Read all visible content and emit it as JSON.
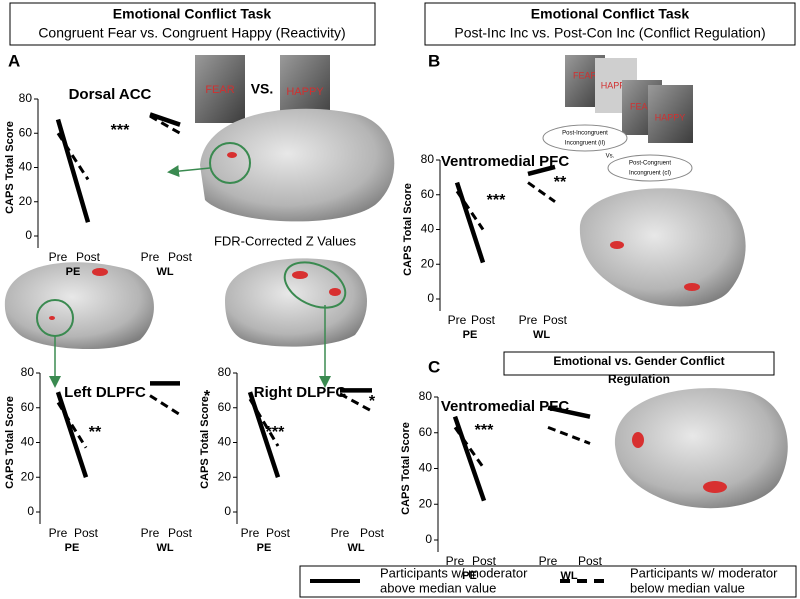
{
  "panels": {
    "A": {
      "label": "A",
      "header": [
        "Emotional Conflict Task",
        "Congruent Fear vs. Congruent Happy (Reactivity)"
      ],
      "vs": "VS.",
      "faces": [
        "FEAR",
        "HAPPY"
      ],
      "colorbar": "FDR-Corrected Z Values"
    },
    "B": {
      "label": "B",
      "header": [
        "Emotional Conflict Task",
        "Post-Inc Inc vs. Post-Con Inc (Conflict Regulation)"
      ],
      "faces": [
        "FEAR",
        "HAPPY",
        "FEAR",
        "HAPPY"
      ],
      "ovals": [
        [
          "Post-Incongruent",
          "Incongruent (iI)"
        ],
        [
          "Post-Congruent",
          "Incongruent (cI)"
        ]
      ],
      "vs": "Vs."
    },
    "C": {
      "label": "C",
      "header": [
        "Emotional vs. Gender Conflict",
        "Regulation"
      ]
    }
  },
  "legend": [
    {
      "dashed": false,
      "label": [
        "Participants w/ moderator",
        "above median value"
      ]
    },
    {
      "dashed": true,
      "label": [
        "Participants w/ moderator",
        "below median value"
      ]
    }
  ],
  "chart_data": [
    {
      "type": "line",
      "title": "Dorsal ACC",
      "ylabel": "CAPS Total Score",
      "categories": [
        "Pre",
        "Post",
        "Pre",
        "Post"
      ],
      "groups": [
        "PE",
        "WL"
      ],
      "ylim": [
        0,
        80
      ],
      "yticks": [
        0,
        20,
        40,
        60,
        80
      ],
      "series": [
        {
          "dashed": false,
          "values": [
            68,
            8,
            71,
            65
          ]
        },
        {
          "dashed": true,
          "values": [
            60,
            33,
            70,
            60
          ]
        }
      ],
      "annotations": [
        "***"
      ]
    },
    {
      "type": "line",
      "title": "Ventromedial  PFC",
      "ylabel": "CAPS Total Score",
      "categories": [
        "Pre",
        "Post",
        "Pre",
        "Post"
      ],
      "groups": [
        "PE",
        "WL"
      ],
      "ylim": [
        0,
        80
      ],
      "yticks": [
        0,
        20,
        40,
        60,
        80
      ],
      "series": [
        {
          "dashed": false,
          "values": [
            67,
            21,
            72,
            76
          ]
        },
        {
          "dashed": true,
          "values": [
            62,
            40,
            67,
            56
          ]
        }
      ],
      "annotations": [
        "***",
        "**"
      ]
    },
    {
      "type": "line",
      "title": "Left DLPFC",
      "ylabel": "CAPS Total Score",
      "categories": [
        "Pre",
        "Post",
        "Pre",
        "Post"
      ],
      "groups": [
        "PE",
        "WL"
      ],
      "ylim": [
        0,
        80
      ],
      "yticks": [
        0,
        20,
        40,
        60,
        80
      ],
      "series": [
        {
          "dashed": false,
          "values": [
            69,
            20,
            74,
            74
          ]
        },
        {
          "dashed": true,
          "values": [
            63,
            37,
            67,
            56
          ]
        }
      ],
      "annotations": [
        "**",
        "*"
      ]
    },
    {
      "type": "line",
      "title": "Right DLPFC",
      "ylabel": "CAPS Total Score",
      "categories": [
        "Pre",
        "Post",
        "Pre",
        "Post"
      ],
      "groups": [
        "PE",
        "WL"
      ],
      "ylim": [
        0,
        80
      ],
      "yticks": [
        0,
        20,
        40,
        60,
        80
      ],
      "series": [
        {
          "dashed": false,
          "values": [
            69,
            20,
            70,
            70
          ]
        },
        {
          "dashed": true,
          "values": [
            65,
            38,
            68,
            58
          ]
        }
      ],
      "annotations": [
        "***",
        "*"
      ]
    },
    {
      "type": "line",
      "title": "Ventromedial  PFC",
      "ylabel": "CAPS Total Score",
      "categories": [
        "Pre",
        "Post",
        "Pre",
        "Post"
      ],
      "groups": [
        "PE",
        "WL"
      ],
      "ylim": [
        0,
        80
      ],
      "yticks": [
        0,
        20,
        40,
        60,
        80
      ],
      "series": [
        {
          "dashed": false,
          "values": [
            69,
            22,
            74,
            69
          ]
        },
        {
          "dashed": true,
          "values": [
            63,
            40,
            63,
            54
          ]
        }
      ],
      "annotations": [
        "***"
      ]
    }
  ]
}
